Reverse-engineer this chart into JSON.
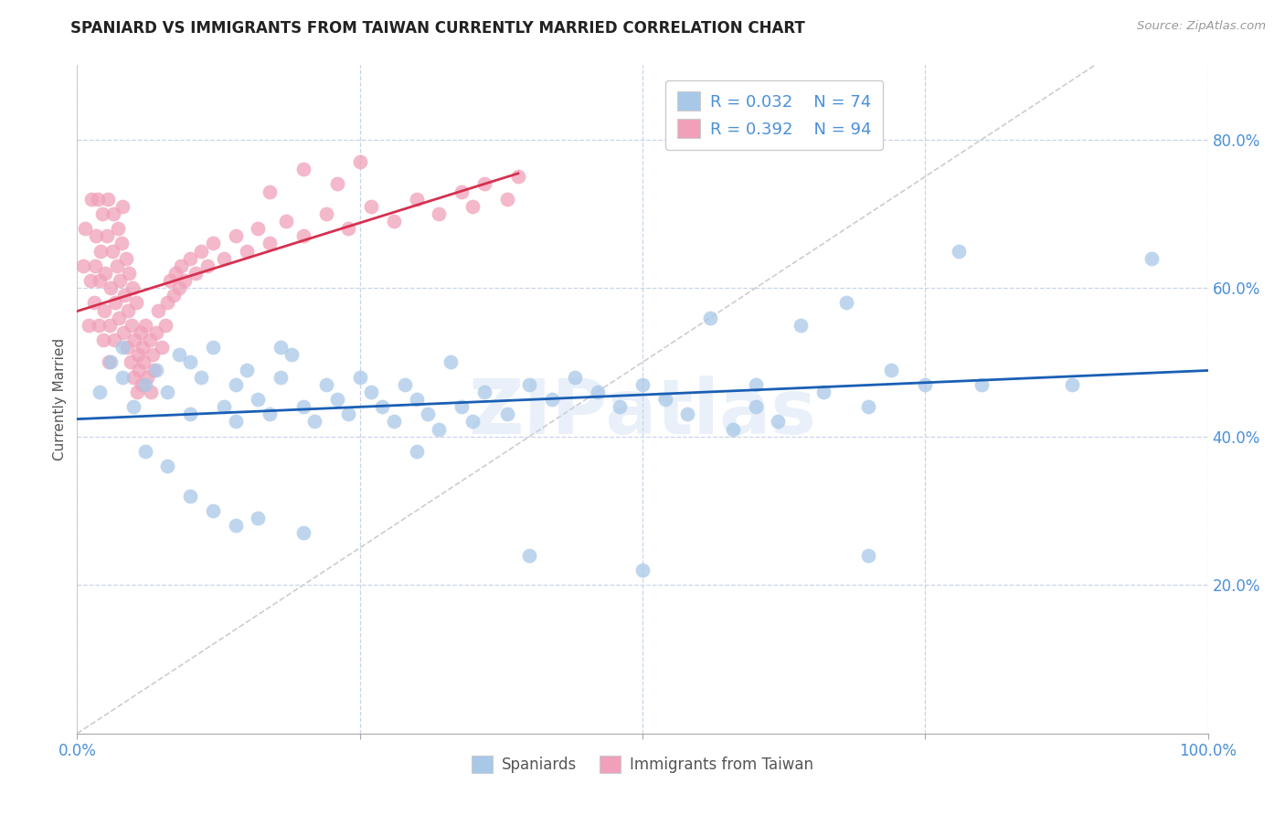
{
  "title": "SPANIARD VS IMMIGRANTS FROM TAIWAN CURRENTLY MARRIED CORRELATION CHART",
  "source": "Source: ZipAtlas.com",
  "ylabel": "Currently Married",
  "xlim": [
    0.0,
    1.0
  ],
  "ylim": [
    0.0,
    0.9
  ],
  "yticks": [
    0.2,
    0.4,
    0.6,
    0.8
  ],
  "ytick_labels": [
    "20.0%",
    "40.0%",
    "60.0%",
    "80.0%"
  ],
  "xticks": [
    0.0,
    0.25,
    0.5,
    0.75,
    1.0
  ],
  "xtick_labels": [
    "0.0%",
    "",
    "",
    "",
    "100.0%"
  ],
  "spaniards_color": "#a8c8e8",
  "taiwan_color": "#f0a0b8",
  "spaniards_line_color": "#1a5fb4",
  "taiwan_line_color": "#d63050",
  "diagonal_color": "#c8c8c8",
  "legend_R1": "R = 0.032",
  "legend_N1": "N = 74",
  "legend_R2": "R = 0.392",
  "legend_N2": "N = 94",
  "legend_label1": "Spaniards",
  "legend_label2": "Immigrants from Taiwan",
  "watermark": "ZIPatlas",
  "background_color": "#ffffff",
  "grid_color": "#c8d4e8",
  "title_fontsize": 12,
  "source_fontsize": 10,
  "spaniards_x": [
    0.02,
    0.03,
    0.04,
    0.04,
    0.05,
    0.06,
    0.07,
    0.08,
    0.09,
    0.1,
    0.1,
    0.11,
    0.12,
    0.13,
    0.14,
    0.14,
    0.15,
    0.16,
    0.17,
    0.18,
    0.18,
    0.19,
    0.2,
    0.21,
    0.22,
    0.23,
    0.24,
    0.25,
    0.26,
    0.27,
    0.28,
    0.29,
    0.3,
    0.31,
    0.32,
    0.33,
    0.34,
    0.35,
    0.36,
    0.38,
    0.4,
    0.42,
    0.44,
    0.46,
    0.48,
    0.5,
    0.52,
    0.54,
    0.56,
    0.58,
    0.6,
    0.62,
    0.64,
    0.66,
    0.68,
    0.7,
    0.72,
    0.75,
    0.78,
    0.8,
    0.06,
    0.08,
    0.1,
    0.12,
    0.14,
    0.16,
    0.2,
    0.3,
    0.4,
    0.5,
    0.6,
    0.7,
    0.88,
    0.95
  ],
  "spaniards_y": [
    0.46,
    0.5,
    0.48,
    0.52,
    0.44,
    0.47,
    0.49,
    0.46,
    0.51,
    0.43,
    0.5,
    0.48,
    0.52,
    0.44,
    0.47,
    0.42,
    0.49,
    0.45,
    0.43,
    0.48,
    0.52,
    0.51,
    0.44,
    0.42,
    0.47,
    0.45,
    0.43,
    0.48,
    0.46,
    0.44,
    0.42,
    0.47,
    0.45,
    0.43,
    0.41,
    0.5,
    0.44,
    0.42,
    0.46,
    0.43,
    0.47,
    0.45,
    0.48,
    0.46,
    0.44,
    0.47,
    0.45,
    0.43,
    0.56,
    0.41,
    0.44,
    0.42,
    0.55,
    0.46,
    0.58,
    0.44,
    0.49,
    0.47,
    0.65,
    0.47,
    0.38,
    0.36,
    0.32,
    0.3,
    0.28,
    0.29,
    0.27,
    0.38,
    0.24,
    0.22,
    0.47,
    0.24,
    0.47,
    0.64
  ],
  "taiwan_x": [
    0.005,
    0.007,
    0.01,
    0.012,
    0.013,
    0.015,
    0.016,
    0.017,
    0.018,
    0.019,
    0.02,
    0.021,
    0.022,
    0.023,
    0.024,
    0.025,
    0.026,
    0.027,
    0.028,
    0.029,
    0.03,
    0.031,
    0.032,
    0.033,
    0.034,
    0.035,
    0.036,
    0.037,
    0.038,
    0.039,
    0.04,
    0.041,
    0.042,
    0.043,
    0.044,
    0.045,
    0.046,
    0.047,
    0.048,
    0.049,
    0.05,
    0.051,
    0.052,
    0.053,
    0.054,
    0.055,
    0.056,
    0.057,
    0.058,
    0.059,
    0.06,
    0.062,
    0.064,
    0.065,
    0.067,
    0.068,
    0.07,
    0.072,
    0.075,
    0.078,
    0.08,
    0.082,
    0.085,
    0.087,
    0.09,
    0.092,
    0.095,
    0.1,
    0.105,
    0.11,
    0.115,
    0.12,
    0.13,
    0.14,
    0.15,
    0.16,
    0.17,
    0.185,
    0.2,
    0.22,
    0.24,
    0.26,
    0.28,
    0.3,
    0.32,
    0.34,
    0.35,
    0.36,
    0.38,
    0.39,
    0.17,
    0.2,
    0.23,
    0.25
  ],
  "taiwan_y": [
    0.63,
    0.68,
    0.55,
    0.61,
    0.72,
    0.58,
    0.63,
    0.67,
    0.72,
    0.55,
    0.61,
    0.65,
    0.7,
    0.53,
    0.57,
    0.62,
    0.67,
    0.72,
    0.5,
    0.55,
    0.6,
    0.65,
    0.7,
    0.53,
    0.58,
    0.63,
    0.68,
    0.56,
    0.61,
    0.66,
    0.71,
    0.54,
    0.59,
    0.64,
    0.52,
    0.57,
    0.62,
    0.5,
    0.55,
    0.6,
    0.48,
    0.53,
    0.58,
    0.46,
    0.51,
    0.49,
    0.54,
    0.47,
    0.52,
    0.5,
    0.55,
    0.48,
    0.53,
    0.46,
    0.51,
    0.49,
    0.54,
    0.57,
    0.52,
    0.55,
    0.58,
    0.61,
    0.59,
    0.62,
    0.6,
    0.63,
    0.61,
    0.64,
    0.62,
    0.65,
    0.63,
    0.66,
    0.64,
    0.67,
    0.65,
    0.68,
    0.66,
    0.69,
    0.67,
    0.7,
    0.68,
    0.71,
    0.69,
    0.72,
    0.7,
    0.73,
    0.71,
    0.74,
    0.72,
    0.75,
    0.73,
    0.76,
    0.74,
    0.77
  ]
}
